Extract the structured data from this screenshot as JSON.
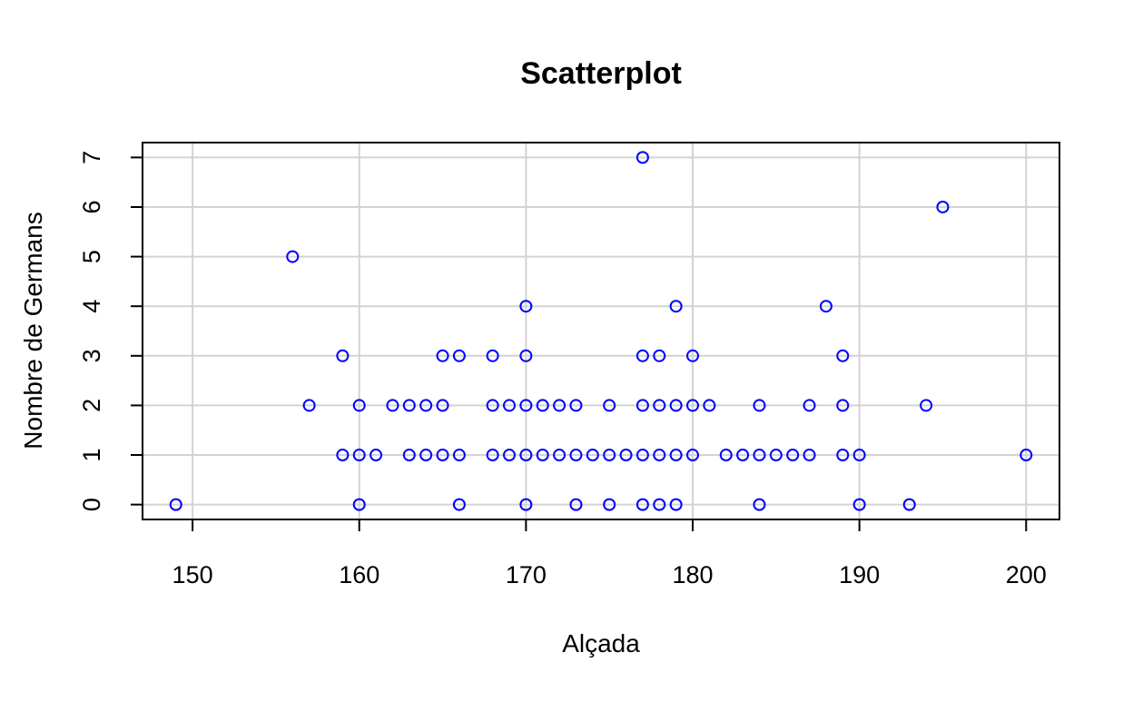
{
  "chart_data": {
    "type": "scatter",
    "title": "Scatterplot",
    "xlabel": "Alçada",
    "ylabel": "Nombre de Germans",
    "xlim": [
      147,
      202
    ],
    "ylim": [
      -0.3,
      7.3
    ],
    "x_ticks": [
      150,
      160,
      170,
      180,
      190,
      200
    ],
    "y_ticks": [
      0,
      1,
      2,
      3,
      4,
      5,
      6,
      7
    ],
    "grid": true,
    "point_color": "#0000ff",
    "grid_color": "#d3d3d3",
    "points": [
      {
        "x": 149,
        "y": 0
      },
      {
        "x": 156,
        "y": 5
      },
      {
        "x": 157,
        "y": 2
      },
      {
        "x": 159,
        "y": 3
      },
      {
        "x": 159,
        "y": 1
      },
      {
        "x": 160,
        "y": 2
      },
      {
        "x": 160,
        "y": 1
      },
      {
        "x": 160,
        "y": 0
      },
      {
        "x": 161,
        "y": 1
      },
      {
        "x": 162,
        "y": 2
      },
      {
        "x": 163,
        "y": 2
      },
      {
        "x": 163,
        "y": 1
      },
      {
        "x": 164,
        "y": 2
      },
      {
        "x": 164,
        "y": 1
      },
      {
        "x": 165,
        "y": 3
      },
      {
        "x": 165,
        "y": 2
      },
      {
        "x": 165,
        "y": 1
      },
      {
        "x": 166,
        "y": 3
      },
      {
        "x": 166,
        "y": 1
      },
      {
        "x": 166,
        "y": 0
      },
      {
        "x": 168,
        "y": 3
      },
      {
        "x": 168,
        "y": 2
      },
      {
        "x": 168,
        "y": 1
      },
      {
        "x": 169,
        "y": 2
      },
      {
        "x": 169,
        "y": 1
      },
      {
        "x": 170,
        "y": 4
      },
      {
        "x": 170,
        "y": 3
      },
      {
        "x": 170,
        "y": 2
      },
      {
        "x": 170,
        "y": 1
      },
      {
        "x": 170,
        "y": 0
      },
      {
        "x": 171,
        "y": 2
      },
      {
        "x": 171,
        "y": 1
      },
      {
        "x": 172,
        "y": 2
      },
      {
        "x": 172,
        "y": 1
      },
      {
        "x": 173,
        "y": 2
      },
      {
        "x": 173,
        "y": 1
      },
      {
        "x": 173,
        "y": 0
      },
      {
        "x": 174,
        "y": 1
      },
      {
        "x": 175,
        "y": 2
      },
      {
        "x": 175,
        "y": 1
      },
      {
        "x": 175,
        "y": 0
      },
      {
        "x": 176,
        "y": 1
      },
      {
        "x": 177,
        "y": 7
      },
      {
        "x": 177,
        "y": 3
      },
      {
        "x": 177,
        "y": 2
      },
      {
        "x": 177,
        "y": 1
      },
      {
        "x": 177,
        "y": 0
      },
      {
        "x": 178,
        "y": 3
      },
      {
        "x": 178,
        "y": 2
      },
      {
        "x": 178,
        "y": 1
      },
      {
        "x": 178,
        "y": 0
      },
      {
        "x": 179,
        "y": 4
      },
      {
        "x": 179,
        "y": 2
      },
      {
        "x": 179,
        "y": 1
      },
      {
        "x": 179,
        "y": 0
      },
      {
        "x": 180,
        "y": 3
      },
      {
        "x": 180,
        "y": 2
      },
      {
        "x": 180,
        "y": 1
      },
      {
        "x": 181,
        "y": 2
      },
      {
        "x": 182,
        "y": 1
      },
      {
        "x": 183,
        "y": 1
      },
      {
        "x": 184,
        "y": 2
      },
      {
        "x": 184,
        "y": 1
      },
      {
        "x": 184,
        "y": 0
      },
      {
        "x": 185,
        "y": 1
      },
      {
        "x": 186,
        "y": 1
      },
      {
        "x": 187,
        "y": 2
      },
      {
        "x": 187,
        "y": 1
      },
      {
        "x": 188,
        "y": 4
      },
      {
        "x": 189,
        "y": 3
      },
      {
        "x": 189,
        "y": 2
      },
      {
        "x": 189,
        "y": 1
      },
      {
        "x": 190,
        "y": 1
      },
      {
        "x": 190,
        "y": 0
      },
      {
        "x": 193,
        "y": 0
      },
      {
        "x": 194,
        "y": 2
      },
      {
        "x": 195,
        "y": 6
      },
      {
        "x": 200,
        "y": 1
      }
    ]
  }
}
